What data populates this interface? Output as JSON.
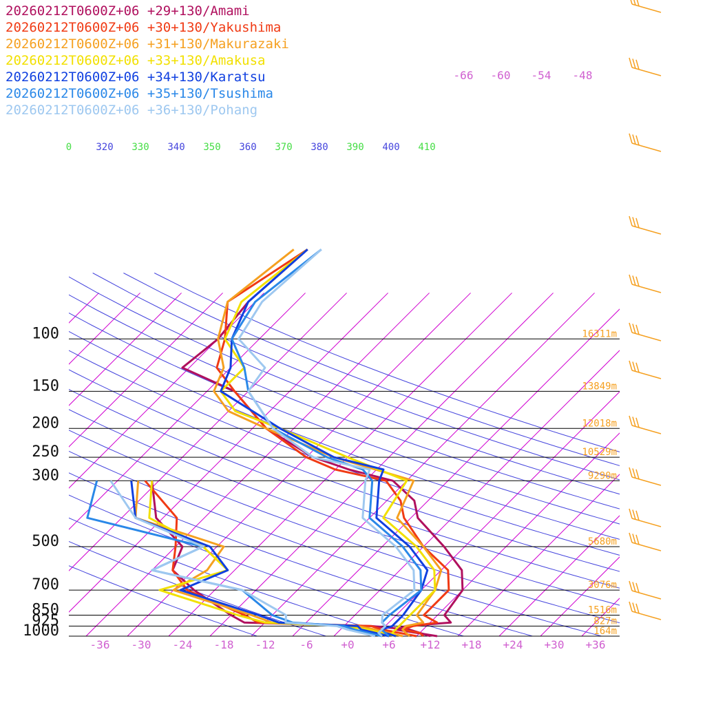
{
  "chart_data": {
    "type": "skew-t sounding",
    "legend": [
      {
        "label": "20260212T0600Z+06 +29+130/Amami",
        "color": "#b0105e"
      },
      {
        "label": "20260212T0600Z+06 +30+130/Yakushima",
        "color": "#f03a14"
      },
      {
        "label": "20260212T0600Z+06 +31+130/Makurazaki",
        "color": "#f5a020"
      },
      {
        "label": "20260212T0600Z+06 +33+130/Amakusa",
        "color": "#f2e000"
      },
      {
        "label": "20260212T0600Z+06 +34+130/Karatsu",
        "color": "#1040e0"
      },
      {
        "label": "20260212T0600Z+06 +35+130/Tsushima",
        "color": "#2a88e8"
      },
      {
        "label": "20260212T0600Z+06 +36+130/Pohang",
        "color": "#9ec8f0"
      }
    ],
    "pressure_levels": [
      {
        "label": "100",
        "p": 100
      },
      {
        "label": "150",
        "p": 150
      },
      {
        "label": "200",
        "p": 200
      },
      {
        "label": "250",
        "p": 250
      },
      {
        "label": "300",
        "p": 300
      },
      {
        "label": "500",
        "p": 500
      },
      {
        "label": "700",
        "p": 700
      },
      {
        "label": "850",
        "p": 850
      },
      {
        "label": "925",
        "p": 925
      },
      {
        "label": "1000",
        "p": 1000
      }
    ],
    "heights": [
      {
        "label": "16311m",
        "p": 100
      },
      {
        "label": "13849m",
        "p": 150
      },
      {
        "label": "12018m",
        "p": 200
      },
      {
        "label": "10529m",
        "p": 250
      },
      {
        "label": "9290m",
        "p": 300
      },
      {
        "label": "5680m",
        "p": 500
      },
      {
        "label": "3076m",
        "p": 700
      },
      {
        "label": "1516m",
        "p": 850
      },
      {
        "label": "827m",
        "p": 925
      },
      {
        "label": "164m",
        "p": 1000
      }
    ],
    "temperature_ticks": [
      "-36",
      "-30",
      "-24",
      "-18",
      "-12",
      "-6",
      "+0",
      "+6",
      "+12",
      "+18",
      "+24",
      "+30",
      "+36"
    ],
    "temperature_tick_values": [
      -36,
      -30,
      -24,
      -18,
      -12,
      -6,
      0,
      6,
      12,
      18,
      24,
      30,
      36
    ],
    "upper_temperature_labels": [
      "-66",
      "-60",
      "-54",
      "-48"
    ],
    "theta_labels": [
      {
        "label": "0",
        "color": "#44dd44"
      },
      {
        "label": "320",
        "color": "#4444dd"
      },
      {
        "label": "330",
        "color": "#44dd44"
      },
      {
        "label": "340",
        "color": "#4444dd"
      },
      {
        "label": "350",
        "color": "#44dd44"
      },
      {
        "label": "360",
        "color": "#4444dd"
      },
      {
        "label": "370",
        "color": "#44dd44"
      },
      {
        "label": "380",
        "color": "#4444dd"
      },
      {
        "label": "390",
        "color": "#44dd44"
      },
      {
        "label": "400",
        "color": "#4444dd"
      },
      {
        "label": "410",
        "color": "#44dd44"
      }
    ],
    "temperature_profiles": [
      {
        "station": "Amami",
        "color": "#b0105e",
        "points": [
          [
            1000,
            13
          ],
          [
            950,
            6
          ],
          [
            925,
            7
          ],
          [
            900,
            13
          ],
          [
            850,
            11
          ],
          [
            700,
            10
          ],
          [
            600,
            7
          ],
          [
            500,
            1
          ],
          [
            400,
            -7
          ],
          [
            350,
            -10
          ],
          [
            300,
            -16
          ],
          [
            275,
            -24
          ],
          [
            250,
            -31
          ],
          [
            200,
            -42
          ],
          [
            150,
            -52
          ],
          [
            125,
            -63
          ],
          [
            100,
            -62
          ],
          [
            75,
            -63
          ],
          [
            50,
            -62
          ]
        ]
      },
      {
        "station": "Yakushima",
        "color": "#f03a14",
        "points": [
          [
            1000,
            11
          ],
          [
            975,
            10
          ],
          [
            950,
            7
          ],
          [
            925,
            8
          ],
          [
            900,
            11
          ],
          [
            850,
            8
          ],
          [
            700,
            8
          ],
          [
            600,
            5
          ],
          [
            500,
            -2
          ],
          [
            400,
            -9
          ],
          [
            350,
            -12
          ],
          [
            300,
            -17
          ],
          [
            275,
            -26
          ],
          [
            250,
            -32
          ],
          [
            200,
            -42
          ],
          [
            150,
            -52
          ],
          [
            125,
            -58
          ],
          [
            100,
            -61
          ],
          [
            75,
            -66
          ],
          [
            50,
            -62
          ]
        ]
      },
      {
        "station": "Makurazaki",
        "color": "#f5a020",
        "points": [
          [
            1000,
            9
          ],
          [
            975,
            8
          ],
          [
            950,
            7
          ],
          [
            925,
            7
          ],
          [
            900,
            9
          ],
          [
            850,
            7
          ],
          [
            700,
            6
          ],
          [
            600,
            4
          ],
          [
            500,
            -2
          ],
          [
            400,
            -10
          ],
          [
            300,
            -13
          ],
          [
            250,
            -28
          ],
          [
            200,
            -42
          ],
          [
            175,
            -50
          ],
          [
            150,
            -55
          ],
          [
            125,
            -57
          ],
          [
            100,
            -62
          ],
          [
            75,
            -66
          ],
          [
            50,
            -64
          ]
        ]
      },
      {
        "station": "Amakusa",
        "color": "#f2e000",
        "points": [
          [
            1000,
            7
          ],
          [
            975,
            6
          ],
          [
            950,
            6
          ],
          [
            925,
            6
          ],
          [
            900,
            6
          ],
          [
            850,
            6
          ],
          [
            700,
            6
          ],
          [
            600,
            3
          ],
          [
            500,
            -3
          ],
          [
            400,
            -12
          ],
          [
            300,
            -14
          ],
          [
            250,
            -26
          ],
          [
            200,
            -40
          ],
          [
            175,
            -49
          ],
          [
            150,
            -54
          ],
          [
            125,
            -54
          ],
          [
            100,
            -61
          ],
          [
            75,
            -64
          ],
          [
            50,
            -62
          ]
        ]
      },
      {
        "station": "Karatsu",
        "color": "#1040e0",
        "points": [
          [
            1000,
            7
          ],
          [
            975,
            5
          ],
          [
            950,
            4
          ],
          [
            925,
            5
          ],
          [
            900,
            5
          ],
          [
            850,
            5
          ],
          [
            700,
            4
          ],
          [
            600,
            2
          ],
          [
            500,
            -4
          ],
          [
            400,
            -13
          ],
          [
            300,
            -18
          ],
          [
            275,
            -19
          ],
          [
            250,
            -28
          ],
          [
            200,
            -40
          ],
          [
            150,
            -54
          ],
          [
            125,
            -56
          ],
          [
            100,
            -60
          ],
          [
            75,
            -63
          ],
          [
            50,
            -62
          ]
        ]
      },
      {
        "station": "Tsushima",
        "color": "#2a88e8",
        "points": [
          [
            1000,
            6
          ],
          [
            975,
            5
          ],
          [
            950,
            4
          ],
          [
            925,
            4
          ],
          [
            900,
            3
          ],
          [
            850,
            3
          ],
          [
            700,
            4
          ],
          [
            600,
            1
          ],
          [
            500,
            -5
          ],
          [
            400,
            -14
          ],
          [
            300,
            -19
          ],
          [
            275,
            -22
          ],
          [
            250,
            -29
          ],
          [
            200,
            -41
          ],
          [
            150,
            -50
          ],
          [
            125,
            -54
          ],
          [
            100,
            -60
          ],
          [
            75,
            -62
          ],
          [
            50,
            -60
          ]
        ]
      },
      {
        "station": "Pohang",
        "color": "#9ec8f0",
        "points": [
          [
            1000,
            5
          ],
          [
            975,
            4
          ],
          [
            950,
            4
          ],
          [
            925,
            4
          ],
          [
            900,
            3
          ],
          [
            850,
            2
          ],
          [
            700,
            3
          ],
          [
            600,
            0
          ],
          [
            500,
            -6
          ],
          [
            400,
            -15
          ],
          [
            300,
            -20
          ],
          [
            275,
            -21
          ],
          [
            250,
            -31
          ],
          [
            200,
            -41
          ],
          [
            150,
            -50
          ],
          [
            125,
            -51
          ],
          [
            100,
            -59
          ],
          [
            75,
            -61
          ],
          [
            50,
            -60
          ]
        ]
      }
    ],
    "dewpoint_profiles": [
      {
        "station": "Amami",
        "color": "#b0105e",
        "points": [
          [
            1000,
            12
          ],
          [
            950,
            8
          ],
          [
            925,
            2
          ],
          [
            900,
            -17
          ],
          [
            850,
            -20
          ],
          [
            700,
            -29
          ],
          [
            600,
            -35
          ],
          [
            500,
            -37
          ],
          [
            400,
            -45
          ],
          [
            300,
            -51
          ]
        ]
      },
      {
        "station": "Yakushima",
        "color": "#f03a14",
        "points": [
          [
            1000,
            10
          ],
          [
            950,
            4
          ],
          [
            925,
            2
          ],
          [
            900,
            -15
          ],
          [
            850,
            -18
          ],
          [
            700,
            -30
          ],
          [
            600,
            -35
          ],
          [
            500,
            -38
          ],
          [
            400,
            -42
          ],
          [
            300,
            -52
          ]
        ]
      },
      {
        "station": "Makurazaki",
        "color": "#f5a020",
        "points": [
          [
            1000,
            8
          ],
          [
            950,
            3
          ],
          [
            925,
            0
          ],
          [
            900,
            -13
          ],
          [
            850,
            -17
          ],
          [
            700,
            -32
          ],
          [
            600,
            -30
          ],
          [
            500,
            -31
          ],
          [
            400,
            -48
          ],
          [
            300,
            -53
          ]
        ]
      },
      {
        "station": "Amakusa",
        "color": "#f2e000",
        "points": [
          [
            1000,
            7
          ],
          [
            950,
            2
          ],
          [
            925,
            -2
          ],
          [
            900,
            -14
          ],
          [
            850,
            -19
          ],
          [
            700,
            -34
          ],
          [
            600,
            -27
          ],
          [
            500,
            -34
          ],
          [
            400,
            -46
          ],
          [
            300,
            -51
          ]
        ]
      },
      {
        "station": "Karatsu",
        "color": "#1040e0",
        "points": [
          [
            1000,
            6
          ],
          [
            950,
            1
          ],
          [
            925,
            0
          ],
          [
            900,
            -12
          ],
          [
            850,
            -16
          ],
          [
            700,
            -31
          ],
          [
            600,
            -27
          ],
          [
            500,
            -33
          ],
          [
            400,
            -48
          ],
          [
            300,
            -54
          ]
        ]
      },
      {
        "station": "Tsushima",
        "color": "#2a88e8",
        "points": [
          [
            1000,
            5
          ],
          [
            950,
            0
          ],
          [
            925,
            -2
          ],
          [
            900,
            -10
          ],
          [
            850,
            -14
          ],
          [
            700,
            -22
          ],
          [
            600,
            -38
          ],
          [
            500,
            -34
          ],
          [
            400,
            -55
          ],
          [
            300,
            -59
          ]
        ]
      },
      {
        "station": "Pohang",
        "color": "#9ec8f0",
        "points": [
          [
            1000,
            4
          ],
          [
            950,
            -1
          ],
          [
            925,
            -3
          ],
          [
            900,
            -11
          ],
          [
            850,
            -12
          ],
          [
            700,
            -22
          ],
          [
            600,
            -38
          ],
          [
            500,
            -34
          ],
          [
            400,
            -48
          ],
          [
            300,
            -57
          ]
        ]
      }
    ],
    "isotherm_color": "#d000d0",
    "dry_adiabat_color": "#4444dd",
    "moist_adiabat_color": "#44dd44",
    "wind_barb_color": "#f5a020",
    "grid": true
  }
}
